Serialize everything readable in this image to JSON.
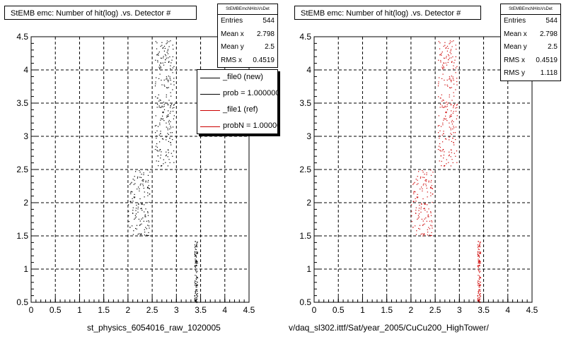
{
  "colors": {
    "frame": "#000000",
    "grid": "#000000",
    "new_series": "#000000",
    "ref_series": "#cc0000"
  },
  "chart_data": [
    {
      "type": "scatter",
      "title": "StEMB emc: Number of hit(log) .vs. Detector #",
      "xlabel": "st_physics_6054016_raw_1020005",
      "ylabel": "",
      "xlim": [
        0,
        4.5
      ],
      "ylim": [
        0.5,
        4.5
      ],
      "xticks": [
        "0",
        "0.5",
        "1",
        "1.5",
        "2",
        "2.5",
        "3",
        "3.5",
        "4",
        "4.5"
      ],
      "yticks": [
        "0.5",
        "1",
        "1.5",
        "2",
        "2.5",
        "3",
        "3.5",
        "4",
        "4.5"
      ],
      "grid": true,
      "series": [
        {
          "name": "_file0 (new)",
          "color": "#000000",
          "clusters": [
            {
              "x": [
                2.55,
                2.95
              ],
              "y": [
                2.55,
                4.45
              ],
              "count": 230
            },
            {
              "x": [
                2.0,
                2.45
              ],
              "y": [
                1.5,
                2.5
              ],
              "count": 140
            },
            {
              "x": [
                3.37,
                3.43
              ],
              "y": [
                0.5,
                1.45
              ],
              "count": 110
            }
          ]
        }
      ],
      "stats": {
        "name": "StEMBEmcNHitsVsDet",
        "entries": {
          "label": "Entries",
          "value": "544"
        },
        "mean_x": {
          "label": "Mean x",
          "value": "2.798"
        },
        "mean_y": {
          "label": "Mean y",
          "value": "2.5"
        },
        "rms_x": {
          "label": "RMS x",
          "value": "0.4519"
        }
      },
      "legend": {
        "placement": "top-right",
        "entries": [
          {
            "label": "_file0 (new)",
            "color": "#000000"
          },
          {
            "label": "prob = 1.000000",
            "color": "#000000"
          },
          {
            "label": "_file1 (ref)",
            "color": "#cc0000"
          },
          {
            "label": "probN = 1.000000",
            "color": "#cc0000"
          }
        ]
      }
    },
    {
      "type": "scatter",
      "title": "StEMB emc: Number of hit(log) .vs. Detector #",
      "xlabel": "v/daq_sl302.ittf/Sat/year_2005/CuCu200_HighTower/",
      "ylabel": "",
      "xlim": [
        0,
        4.5
      ],
      "ylim": [
        0.5,
        4.5
      ],
      "xticks": [
        "0",
        "0.5",
        "1",
        "1.5",
        "2",
        "2.5",
        "3",
        "3.5",
        "4",
        "4.5"
      ],
      "yticks": [
        "0.5",
        "1",
        "1.5",
        "2",
        "2.5",
        "3",
        "3.5",
        "4",
        "4.5"
      ],
      "grid": true,
      "series": [
        {
          "name": "_file1 (ref)",
          "color": "#cc0000",
          "clusters": [
            {
              "x": [
                2.55,
                2.95
              ],
              "y": [
                2.55,
                4.45
              ],
              "count": 230
            },
            {
              "x": [
                2.0,
                2.45
              ],
              "y": [
                1.5,
                2.5
              ],
              "count": 140
            },
            {
              "x": [
                3.37,
                3.43
              ],
              "y": [
                0.5,
                1.45
              ],
              "count": 110
            }
          ]
        }
      ],
      "stats": {
        "name": "StEMBEmcNHitsVsDet",
        "entries": {
          "label": "Entries",
          "value": "544"
        },
        "mean_x": {
          "label": "Mean x",
          "value": "2.798"
        },
        "mean_y": {
          "label": "Mean y",
          "value": "2.5"
        },
        "rms_x": {
          "label": "RMS x",
          "value": "0.4519"
        },
        "rms_y": {
          "label": "RMS y",
          "value": "1.118"
        }
      }
    }
  ]
}
